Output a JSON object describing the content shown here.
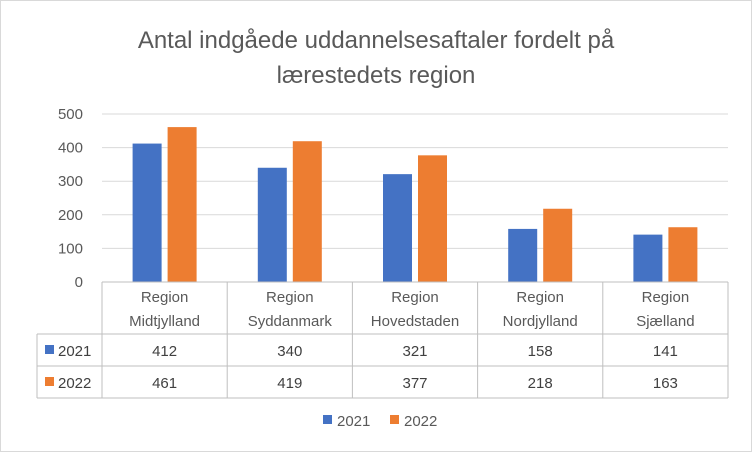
{
  "chart_data": {
    "type": "bar",
    "title": "Antal indgåede uddannelsesaftaler fordelt på lærestedets region",
    "title_lines": [
      "Antal indgåede uddannelsesaftaler fordelt på",
      "lærestedets region"
    ],
    "categories": [
      "Region Midtjylland",
      "Region Syddanmark",
      "Region Hovedstaden",
      "Region Nordjylland",
      "Region Sjælland"
    ],
    "category_lines": [
      [
        "Region",
        "Midtjylland"
      ],
      [
        "Region",
        "Syddanmark"
      ],
      [
        "Region",
        "Hovedstaden"
      ],
      [
        "Region",
        "Nordjylland"
      ],
      [
        "Region",
        "Sjælland"
      ]
    ],
    "series": [
      {
        "name": "2021",
        "color": "#4472c4",
        "values": [
          412,
          340,
          321,
          158,
          141
        ]
      },
      {
        "name": "2022",
        "color": "#ed7d31",
        "values": [
          461,
          419,
          377,
          218,
          163
        ]
      }
    ],
    "ylim": [
      0,
      500
    ],
    "yticks": [
      0,
      100,
      200,
      300,
      400,
      500
    ],
    "grid": true,
    "data_table": true,
    "legend_position": "bottom",
    "xlabel": "",
    "ylabel": ""
  }
}
